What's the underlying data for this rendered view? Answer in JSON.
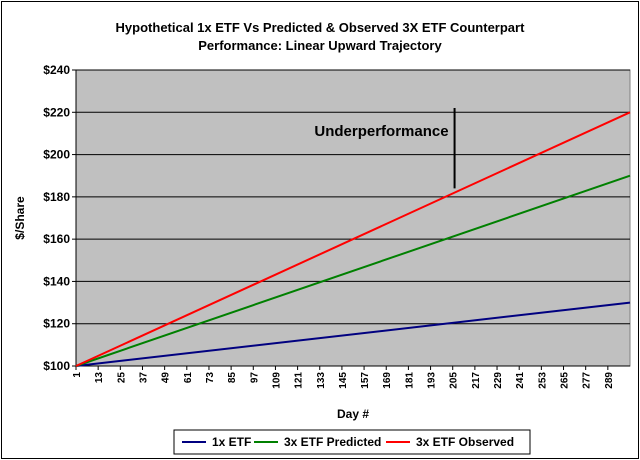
{
  "chart_data": {
    "type": "line",
    "title": "Hypothetical 1x ETF Vs Predicted & Observed 3X ETF Counterpart",
    "subtitle": "Performance: Linear Upward Trajectory",
    "xlabel": "Day #",
    "ylabel": "$/Share",
    "xlim": [
      1,
      301
    ],
    "ylim": [
      100,
      240
    ],
    "y_ticks": [
      100,
      120,
      140,
      160,
      180,
      200,
      220,
      240
    ],
    "y_tick_labels": [
      "$100",
      "$120",
      "$140",
      "$160",
      "$180",
      "$200",
      "$220",
      "$240"
    ],
    "x_ticks": [
      1,
      13,
      25,
      37,
      49,
      61,
      73,
      85,
      97,
      109,
      121,
      133,
      145,
      157,
      169,
      181,
      193,
      205,
      217,
      229,
      241,
      253,
      265,
      277,
      289
    ],
    "grid": "horizontal",
    "legend_position": "bottom",
    "series": [
      {
        "name": "1x ETF",
        "color": "#000080",
        "x": [
          1,
          301
        ],
        "y": [
          100,
          130
        ]
      },
      {
        "name": "3x ETF Predicted",
        "color": "#008000",
        "x": [
          1,
          301
        ],
        "y": [
          100,
          190
        ]
      },
      {
        "name": "3x ETF Observed",
        "color": "#ff0000",
        "x": [
          1,
          301
        ],
        "y": [
          100,
          220
        ]
      }
    ],
    "annotation": {
      "text": "Underperformance",
      "x": 206,
      "y_from": 184,
      "y_to": 222
    }
  }
}
